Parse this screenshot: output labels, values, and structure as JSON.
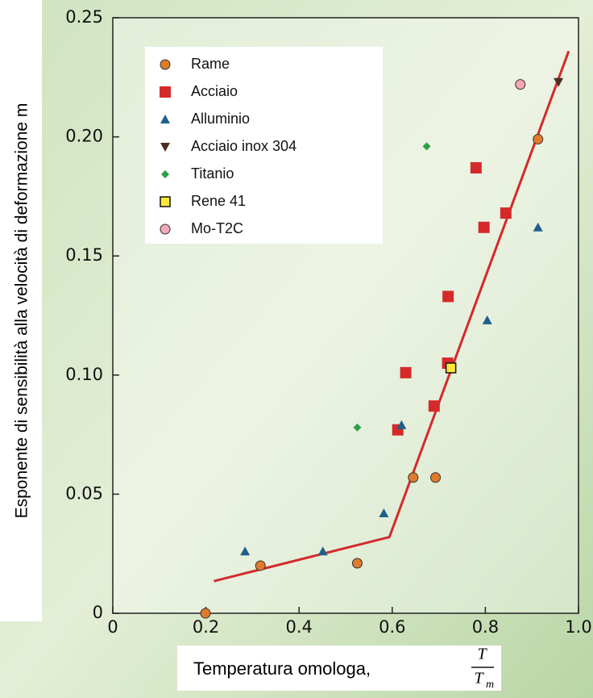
{
  "chart_data": {
    "type": "scatter",
    "ylabel": "Esponente di sensibilità alla velocità di deformazione m",
    "xlabel": "Temperatura omologa,",
    "xlabel_symbol": {
      "numerator": "T",
      "denominator": "T",
      "denominator_subscript": "m"
    },
    "xlim": [
      0,
      1.0
    ],
    "ylim": [
      0,
      0.25
    ],
    "xticks": [
      0,
      0.2,
      0.4,
      0.6,
      0.8,
      {
        "value": 1.0,
        "label": "1.0"
      }
    ],
    "yticks": [
      0,
      0.05,
      {
        "value": 0.1,
        "label": "0.10"
      },
      0.15,
      {
        "value": 0.2,
        "label": "0.20"
      },
      0.25
    ],
    "series": [
      {
        "name": "Rame",
        "color": "#e07b2a",
        "marker": "circle",
        "x": [
          0.199,
          0.317,
          0.525,
          0.645,
          0.693,
          0.913
        ],
        "values": [
          0,
          0.02,
          0.021,
          0.057,
          0.057,
          0.199
        ]
      },
      {
        "name": "Acciaio",
        "color": "#d42a2a",
        "marker": "square",
        "x": [
          0.629,
          0.612,
          0.69,
          0.719,
          0.72,
          0.78,
          0.797,
          0.844
        ],
        "values": [
          0.101,
          0.077,
          0.087,
          0.105,
          0.133,
          0.187,
          0.162,
          0.168
        ]
      },
      {
        "name": "Alluminio",
        "color": "#1f5f8b",
        "marker": "triangle",
        "x": [
          0.284,
          0.451,
          0.582,
          0.62,
          0.804,
          0.913
        ],
        "values": [
          0.026,
          0.026,
          0.042,
          0.079,
          0.123,
          0.162
        ]
      },
      {
        "name": "Acciaio inox 304",
        "color": "#4a2e1e",
        "marker": "triangle-down",
        "x": [
          0.957
        ],
        "values": [
          0.223
        ]
      },
      {
        "name": "Titanio",
        "color": "#2ca048",
        "marker": "diamond",
        "x": [
          0.525,
          0.674
        ],
        "values": [
          0.078,
          0.196
        ]
      },
      {
        "name": "Rene 41",
        "color": "#ffe83a",
        "marker": "square-outline",
        "x": [
          0.726
        ],
        "values": [
          0.103
        ]
      },
      {
        "name": "Mo-T2C",
        "color": "#f4a8b8",
        "marker": "circle-outline",
        "x": [
          0.875
        ],
        "values": [
          0.222
        ]
      }
    ],
    "fit_line": {
      "color": "#d42a2a",
      "x": [
        0.217,
        0.594,
        0.979
      ],
      "values": [
        0.0135,
        0.032,
        0.236
      ]
    }
  }
}
